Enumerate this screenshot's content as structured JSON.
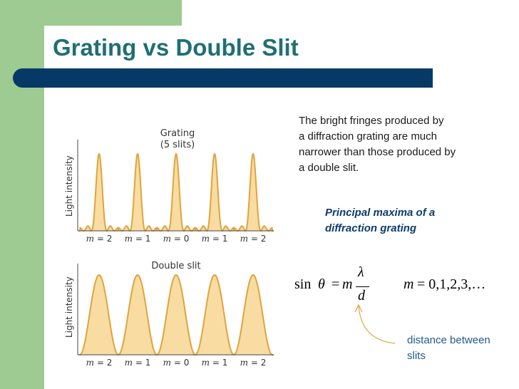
{
  "slide": {
    "title": "Grating vs Double Slit"
  },
  "figures": {
    "grating": {
      "title_line1": "Grating",
      "title_line2": "(5 slits)",
      "ylabel": "Light intensity",
      "order_labels": [
        "m = 2",
        "m = 1",
        "m = 0",
        "m = 1",
        "m = 2"
      ],
      "peak_orders": [
        -2,
        -1,
        0,
        1,
        2
      ],
      "fill_color": "#f8dca2",
      "line_color": "#e2a33c"
    },
    "double_slit": {
      "title": "Double slit",
      "ylabel": "Light intensity",
      "order_labels": [
        "m = 2",
        "m = 1",
        "m = 0",
        "m = 1",
        "m = 2"
      ],
      "peak_orders": [
        -2,
        -1,
        0,
        1,
        2
      ],
      "fill_color": "#f8dca2",
      "line_color": "#e2a33c"
    }
  },
  "description": {
    "lines": [
      "The bright fringes produced by",
      "a diffraction grating are much",
      "narrower than those produced by",
      "a double slit."
    ]
  },
  "principal_maxima": {
    "heading_line1": "Principal maxima of a",
    "heading_line2": "diffraction grating"
  },
  "equation": {
    "lhs_func": "sin",
    "lhs_var": "θ",
    "equals": "=",
    "m": "m",
    "numerator": "λ",
    "denominator": "d",
    "m_values_lhs": "m",
    "m_values_rhs": "= 0,1,2,3,…"
  },
  "annotation": {
    "line1": "distance between",
    "line2": "slits"
  },
  "colors": {
    "side_green": "#9ecb92",
    "title_teal": "#1f6f74",
    "title_bar_navy": "#063966",
    "heading_blue": "#0d3d6b",
    "note_blue": "#1f5a8a",
    "arrow_orange": "#e2a33c"
  }
}
